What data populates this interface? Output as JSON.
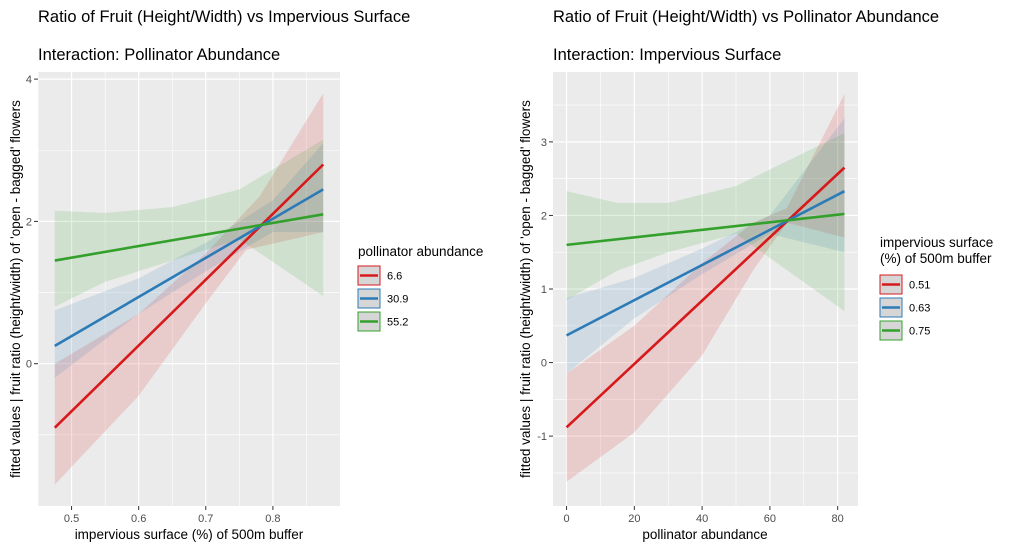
{
  "chart_data": [
    {
      "type": "line",
      "title": "Ratio of Fruit (Height/Width) vs Impervious Surface",
      "subtitle": "Interaction: Pollinator Abundance",
      "xlabel": "impervious surface (%) of 500m buffer",
      "ylabel": "fitted values | fruit ratio (height/width) of 'open - bagged' flowers",
      "xlim": [
        0.45,
        0.9
      ],
      "ylim": [
        -2.0,
        4.1
      ],
      "x_ticks": [
        0.5,
        0.6,
        0.7,
        0.8
      ],
      "x_tick_labels": [
        "0.5",
        "0.6",
        "0.7",
        "0.8"
      ],
      "y_ticks": [
        0,
        2,
        4
      ],
      "y_tick_labels": [
        "0",
        "2",
        "4"
      ],
      "grid": true,
      "legend_title": [
        "pollinator abundance"
      ],
      "legend_position": "right",
      "series": [
        {
          "name": "6.6",
          "color": "#d7191c",
          "x": [
            0.475,
            0.875
          ],
          "y": [
            -0.9,
            2.8
          ],
          "lower": [
            [
              0.475,
              -1.7
            ],
            [
              0.6,
              -0.45
            ],
            [
              0.7,
              0.85
            ],
            [
              0.76,
              1.6
            ],
            [
              0.875,
              1.85
            ]
          ],
          "upper": [
            [
              0.475,
              0.0
            ],
            [
              0.6,
              0.7
            ],
            [
              0.7,
              1.55
            ],
            [
              0.78,
              2.35
            ],
            [
              0.875,
              3.8
            ]
          ]
        },
        {
          "name": "30.9",
          "color": "#2c7bb6",
          "x": [
            0.475,
            0.875
          ],
          "y": [
            0.25,
            2.45
          ],
          "lower": [
            [
              0.475,
              -0.2
            ],
            [
              0.6,
              0.7
            ],
            [
              0.7,
              1.3
            ],
            [
              0.8,
              1.85
            ],
            [
              0.875,
              1.85
            ]
          ],
          "upper": [
            [
              0.475,
              0.75
            ],
            [
              0.6,
              1.2
            ],
            [
              0.7,
              1.7
            ],
            [
              0.8,
              2.3
            ],
            [
              0.875,
              3.1
            ]
          ]
        },
        {
          "name": "55.2",
          "color": "#33a02c",
          "x": [
            0.475,
            0.875
          ],
          "y": [
            1.45,
            2.1
          ],
          "lower": [
            [
              0.475,
              0.8
            ],
            [
              0.55,
              1.15
            ],
            [
              0.65,
              1.45
            ],
            [
              0.75,
              1.75
            ],
            [
              0.875,
              0.95
            ]
          ],
          "upper": [
            [
              0.475,
              2.15
            ],
            [
              0.55,
              2.12
            ],
            [
              0.65,
              2.2
            ],
            [
              0.75,
              2.45
            ],
            [
              0.875,
              3.15
            ]
          ]
        }
      ]
    },
    {
      "type": "line",
      "title": "Ratio of Fruit (Height/Width) vs Pollinator Abundance",
      "subtitle": "Interaction: Impervious Surface",
      "xlabel": "pollinator abundance",
      "ylabel": "fitted values | fruit ratio (height/width) of 'open - bagged' flowers",
      "xlim": [
        -4,
        86
      ],
      "ylim": [
        -1.95,
        3.95
      ],
      "x_ticks": [
        0,
        20,
        40,
        60,
        80
      ],
      "x_tick_labels": [
        "0",
        "20",
        "40",
        "60",
        "80"
      ],
      "y_ticks": [
        -1,
        0,
        1,
        2,
        3
      ],
      "y_tick_labels": [
        "-1",
        "0",
        "1",
        "2",
        "3"
      ],
      "grid": true,
      "legend_title": [
        "impervious surface",
        "(%) of 500m buffer"
      ],
      "legend_position": "right",
      "series": [
        {
          "name": "0.51",
          "color": "#d7191c",
          "x": [
            0,
            82
          ],
          "y": [
            -0.88,
            2.65
          ],
          "lower": [
            [
              0,
              -1.62
            ],
            [
              20,
              -0.95
            ],
            [
              40,
              0.1
            ],
            [
              55,
              1.25
            ],
            [
              65,
              1.9
            ],
            [
              82,
              1.7
            ]
          ],
          "upper": [
            [
              0,
              -0.15
            ],
            [
              20,
              0.5
            ],
            [
              40,
              1.35
            ],
            [
              55,
              1.9
            ],
            [
              65,
              2.1
            ],
            [
              82,
              3.65
            ]
          ]
        },
        {
          "name": "0.63",
          "color": "#2c7bb6",
          "x": [
            0,
            82
          ],
          "y": [
            0.37,
            2.33
          ],
          "lower": [
            [
              0,
              -0.15
            ],
            [
              20,
              0.6
            ],
            [
              40,
              1.2
            ],
            [
              60,
              1.75
            ],
            [
              82,
              1.5
            ]
          ],
          "upper": [
            [
              0,
              0.88
            ],
            [
              20,
              1.15
            ],
            [
              40,
              1.55
            ],
            [
              60,
              2.0
            ],
            [
              82,
              3.32
            ]
          ]
        },
        {
          "name": "0.75",
          "color": "#33a02c",
          "x": [
            0,
            82
          ],
          "y": [
            1.6,
            2.02
          ],
          "lower": [
            [
              0,
              0.85
            ],
            [
              15,
              1.25
            ],
            [
              30,
              1.5
            ],
            [
              50,
              1.75
            ],
            [
              82,
              0.7
            ]
          ],
          "upper": [
            [
              0,
              2.33
            ],
            [
              15,
              2.17
            ],
            [
              30,
              2.17
            ],
            [
              50,
              2.4
            ],
            [
              82,
              3.12
            ]
          ]
        }
      ]
    }
  ]
}
